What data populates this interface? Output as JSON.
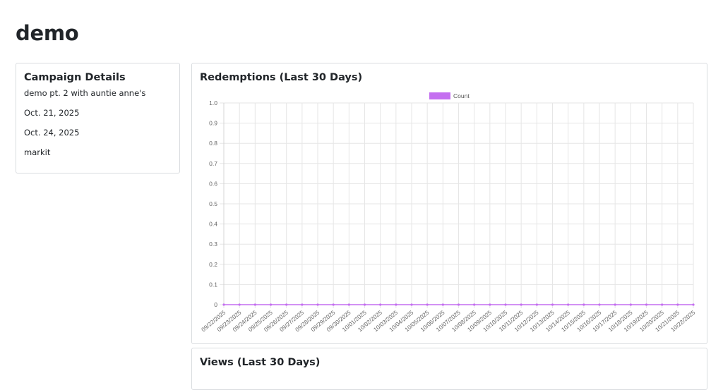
{
  "page": {
    "title": "demo"
  },
  "campaign_details": {
    "heading": "Campaign Details",
    "name": "demo pt. 2 with auntie anne's",
    "start_date": "Oct. 21, 2025",
    "end_date": "Oct. 24, 2025",
    "brand": "markit"
  },
  "redemptions_card": {
    "heading": "Redemptions (Last 30 Days)"
  },
  "views_card": {
    "heading": "Views (Last 30 Days)"
  },
  "colors": {
    "series": "#c46ff0",
    "grid": "#e6e6e6"
  },
  "chart_data": {
    "type": "line",
    "title": "",
    "xlabel": "",
    "ylabel": "",
    "legend": "top-center",
    "grid": true,
    "ylim": [
      0,
      1.0
    ],
    "y_ticks": [
      "0",
      "0.1",
      "0.2",
      "0.3",
      "0.4",
      "0.5",
      "0.6",
      "0.7",
      "0.8",
      "0.9",
      "1.0"
    ],
    "x": [
      "09/22/2025",
      "09/23/2025",
      "09/24/2025",
      "09/25/2025",
      "09/26/2025",
      "09/27/2025",
      "09/28/2025",
      "09/29/2025",
      "09/30/2025",
      "10/01/2025",
      "10/02/2025",
      "10/03/2025",
      "10/04/2025",
      "10/05/2025",
      "10/06/2025",
      "10/07/2025",
      "10/08/2025",
      "10/09/2025",
      "10/10/2025",
      "10/11/2025",
      "10/12/2025",
      "10/13/2025",
      "10/14/2025",
      "10/15/2025",
      "10/16/2025",
      "10/17/2025",
      "10/18/2025",
      "10/19/2025",
      "10/20/2025",
      "10/21/2025",
      "10/22/2025"
    ],
    "series": [
      {
        "name": "Count",
        "values": [
          0,
          0,
          0,
          0,
          0,
          0,
          0,
          0,
          0,
          0,
          0,
          0,
          0,
          0,
          0,
          0,
          0,
          0,
          0,
          0,
          0,
          0,
          0,
          0,
          0,
          0,
          0,
          0,
          0,
          0,
          0
        ]
      }
    ]
  }
}
